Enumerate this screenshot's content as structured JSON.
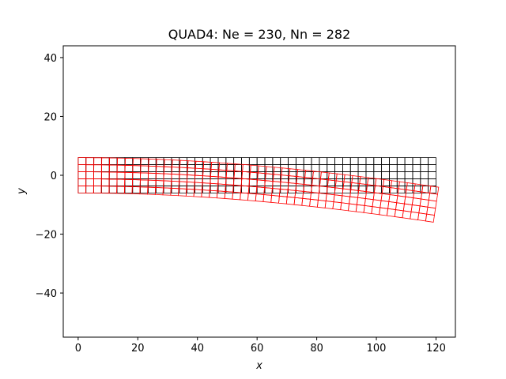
{
  "chart_data": {
    "type": "mesh",
    "title": "QUAD4: Ne = 230, Nn = 282",
    "xlabel": "x",
    "ylabel": "y",
    "xlim": [
      -5,
      126.5
    ],
    "ylim": [
      -55,
      44
    ],
    "xticks": [
      0,
      20,
      40,
      60,
      80,
      100,
      120
    ],
    "yticks": [
      40,
      20,
      0,
      -20,
      -40
    ],
    "xtick_labels": [
      "0",
      "20",
      "40",
      "60",
      "80",
      "100",
      "120"
    ],
    "ytick_labels": [
      "40",
      "20",
      "0",
      "−20",
      "−40"
    ],
    "grid": false,
    "mesh": {
      "element_type": "QUAD4",
      "elements": 230,
      "nodes": 282,
      "length": 120,
      "height": 12,
      "divisions_x": 46,
      "divisions_y": 5,
      "tip_deflection": -10,
      "tip_rotation_deg": -8.5
    },
    "series": [
      {
        "name": "",
        "color": "#000000",
        "role": "undeformed"
      },
      {
        "name": "",
        "color": "#ff0000",
        "role": "deformed"
      }
    ]
  }
}
